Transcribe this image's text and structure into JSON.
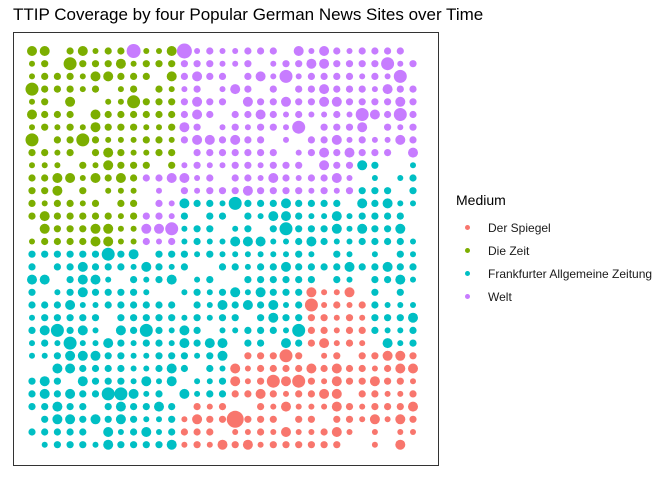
{
  "chart_data": {
    "type": "scatter",
    "title": "TTIP Coverage by four Popular German News Sites over Time",
    "xlabel": "",
    "ylabel": "",
    "grid": false,
    "axes_visible": false,
    "legend": {
      "title": "Medium",
      "placement": "right",
      "entries": [
        "Der Spiegel",
        "Die Zeit",
        "Frankfurter Allgemeine Zeitung",
        "Welt"
      ]
    },
    "series": [
      {
        "name": "Der Spiegel",
        "color": "#F8766D"
      },
      {
        "name": "Die Zeit",
        "color": "#7CAE00"
      },
      {
        "name": "Frankfurter Allgemeine Zeitung",
        "color": "#00BFC4"
      },
      {
        "name": "Welt",
        "color": "#C77CFF"
      }
    ]
  }
}
